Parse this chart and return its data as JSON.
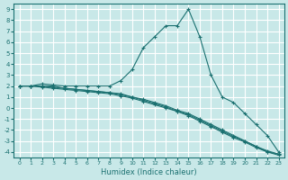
{
  "xlabel": "Humidex (Indice chaleur)",
  "ylabel": "",
  "bg_color": "#c8e8e8",
  "grid_color": "#ffffff",
  "line_color": "#1a7070",
  "xlim": [
    -0.5,
    23.5
  ],
  "ylim": [
    -4.5,
    9.5
  ],
  "xticks": [
    0,
    1,
    2,
    3,
    4,
    5,
    6,
    7,
    8,
    9,
    10,
    11,
    12,
    13,
    14,
    15,
    16,
    17,
    18,
    19,
    20,
    21,
    22,
    23
  ],
  "yticks": [
    -4,
    -3,
    -2,
    -1,
    0,
    1,
    2,
    3,
    4,
    5,
    6,
    7,
    8,
    9
  ],
  "lines": [
    {
      "x": [
        0,
        1,
        2,
        3,
        4,
        5,
        6,
        7,
        8,
        9,
        10,
        11,
        12,
        13,
        14,
        15,
        16,
        17,
        18,
        19,
        20,
        21,
        22,
        23
      ],
      "y": [
        2,
        2,
        2.2,
        2.1,
        2,
        2,
        2,
        2,
        2,
        2.5,
        3.5,
        5.5,
        6.5,
        7.5,
        7.5,
        9,
        6.5,
        3,
        1,
        0.5,
        -0.5,
        -1.5,
        -2.5,
        -4
      ]
    },
    {
      "x": [
        0,
        1,
        2,
        3,
        4,
        5,
        6,
        7,
        8,
        9,
        10,
        11,
        12,
        13,
        14,
        15,
        16,
        17,
        18,
        19,
        20,
        21,
        22,
        23
      ],
      "y": [
        2,
        2,
        2,
        2,
        1.8,
        1.7,
        1.6,
        1.5,
        1.4,
        1.3,
        1.0,
        0.8,
        0.5,
        0.2,
        -0.2,
        -0.5,
        -1.0,
        -1.5,
        -2.0,
        -2.5,
        -3.0,
        -3.5,
        -4.0,
        -4.2
      ]
    },
    {
      "x": [
        0,
        1,
        2,
        3,
        4,
        5,
        6,
        7,
        8,
        9,
        10,
        11,
        12,
        13,
        14,
        15,
        16,
        17,
        18,
        19,
        20,
        21,
        22,
        23
      ],
      "y": [
        2,
        2,
        1.9,
        1.8,
        1.7,
        1.6,
        1.5,
        1.4,
        1.3,
        1.1,
        0.9,
        0.6,
        0.3,
        0.0,
        -0.3,
        -0.7,
        -1.2,
        -1.7,
        -2.2,
        -2.7,
        -3.1,
        -3.6,
        -4.0,
        -4.3
      ]
    },
    {
      "x": [
        0,
        1,
        2,
        3,
        4,
        5,
        6,
        7,
        8,
        9,
        10,
        11,
        12,
        13,
        14,
        15,
        16,
        17,
        18,
        19,
        20,
        21,
        22,
        23
      ],
      "y": [
        2,
        2,
        2,
        1.9,
        1.8,
        1.7,
        1.6,
        1.5,
        1.4,
        1.2,
        1.0,
        0.7,
        0.4,
        0.1,
        -0.3,
        -0.6,
        -1.1,
        -1.6,
        -2.1,
        -2.6,
        -3.0,
        -3.5,
        -3.9,
        -4.2
      ]
    }
  ]
}
